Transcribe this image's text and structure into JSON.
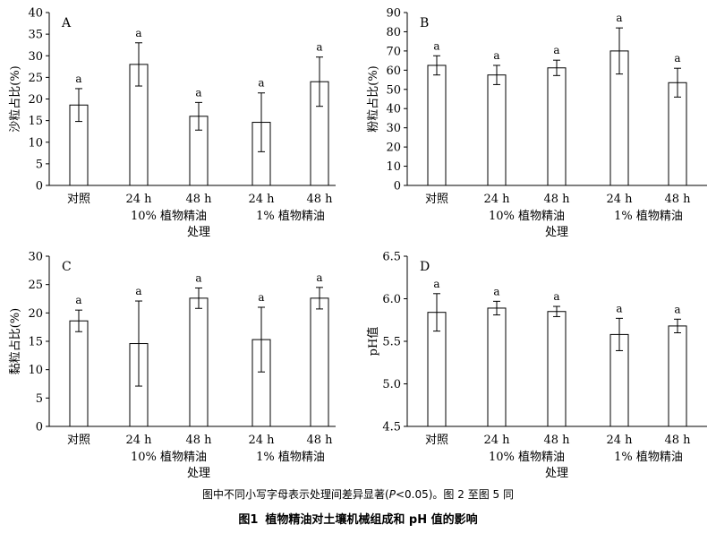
{
  "chart_data": [
    {
      "type": "bar",
      "panel_letter": "A",
      "ylabel": "沙粒占比(%)",
      "ylim": [
        0,
        40
      ],
      "yticks": [
        0,
        5,
        10,
        15,
        20,
        25,
        30,
        35,
        40
      ],
      "categories": [
        "对照",
        "24 h",
        "48 h",
        "24 h",
        "48 h"
      ],
      "groups": [
        {
          "label": "10% 植物精油",
          "categories": [
            1,
            2
          ]
        },
        {
          "label": "1% 植物精油",
          "categories": [
            3,
            4
          ]
        }
      ],
      "xlabel": "处理",
      "values": [
        18.6,
        28.0,
        16.0,
        14.6,
        24.0
      ],
      "errors": [
        3.8,
        5.0,
        3.2,
        6.8,
        5.7
      ],
      "significance": [
        "a",
        "a",
        "a",
        "a",
        "a"
      ]
    },
    {
      "type": "bar",
      "panel_letter": "B",
      "ylabel": "粉粒占比(%)",
      "ylim": [
        0,
        90
      ],
      "yticks": [
        0,
        10,
        20,
        30,
        40,
        50,
        60,
        70,
        80,
        90
      ],
      "categories": [
        "对照",
        "24 h",
        "48 h",
        "24 h",
        "48 h"
      ],
      "groups": [
        {
          "label": "10% 植物精油",
          "categories": [
            1,
            2
          ]
        },
        {
          "label": "1% 植物精油",
          "categories": [
            3,
            4
          ]
        }
      ],
      "xlabel": "处理",
      "values": [
        62.5,
        57.5,
        61.2,
        70.0,
        53.5
      ],
      "errors": [
        5.0,
        5.0,
        4.0,
        12.0,
        7.5
      ],
      "significance": [
        "a",
        "a",
        "a",
        "a",
        "a"
      ]
    },
    {
      "type": "bar",
      "panel_letter": "C",
      "ylabel": "黏粒占比(%)",
      "ylim": [
        0,
        30
      ],
      "yticks": [
        0,
        5,
        10,
        15,
        20,
        25,
        30
      ],
      "categories": [
        "对照",
        "24 h",
        "48 h",
        "24 h",
        "48 h"
      ],
      "groups": [
        {
          "label": "10% 植物精油",
          "categories": [
            1,
            2
          ]
        },
        {
          "label": "1% 植物精油",
          "categories": [
            3,
            4
          ]
        }
      ],
      "xlabel": "处理",
      "values": [
        18.6,
        14.6,
        22.6,
        15.3,
        22.6
      ],
      "errors": [
        1.9,
        7.5,
        1.8,
        5.7,
        1.9
      ],
      "significance": [
        "a",
        "a",
        "a",
        "a",
        "a"
      ]
    },
    {
      "type": "bar",
      "panel_letter": "D",
      "ylabel": "pH值",
      "ylim": [
        4.5,
        6.5
      ],
      "yticks": [
        4.5,
        5.0,
        5.5,
        6.0,
        6.5
      ],
      "tick_decimals": 1,
      "categories": [
        "对照",
        "24 h",
        "48 h",
        "24 h",
        "48 h"
      ],
      "groups": [
        {
          "label": "10% 植物精油",
          "categories": [
            1,
            2
          ]
        },
        {
          "label": "1% 植物精油",
          "categories": [
            3,
            4
          ]
        }
      ],
      "xlabel": "处理",
      "values": [
        5.84,
        5.89,
        5.85,
        5.58,
        5.68
      ],
      "errors": [
        0.22,
        0.08,
        0.06,
        0.19,
        0.08
      ],
      "significance": [
        "a",
        "a",
        "a",
        "a",
        "a"
      ]
    }
  ],
  "caption": {
    "note_before": "图中不同小写字母表示处理间差异显著(",
    "note_p": "P",
    "note_after": "<0.05)。图 2 至图 5 同",
    "figure_number": "图1",
    "figure_title": "植物精油对土壤机械组成和 pH 值的影响"
  }
}
